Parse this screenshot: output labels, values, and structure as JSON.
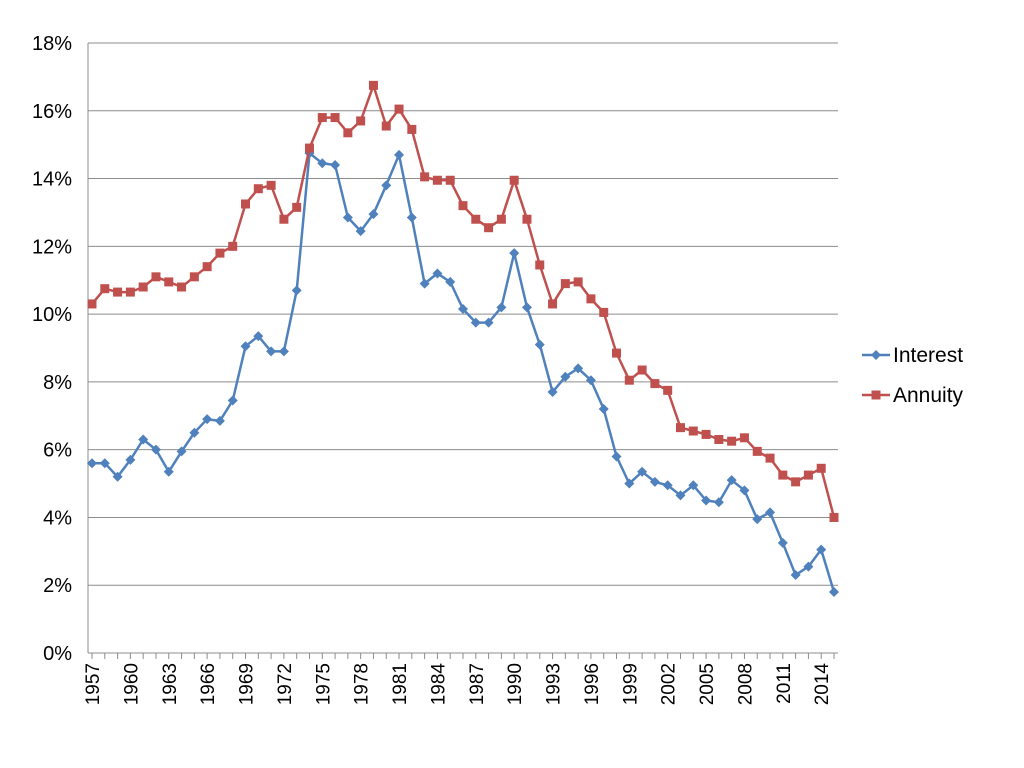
{
  "chart_data": {
    "type": "line",
    "title": "",
    "xlabel": "",
    "ylabel": "",
    "ylim": [
      0,
      18
    ],
    "y_unit": "%",
    "y_ticks": [
      "0%",
      "2%",
      "4%",
      "6%",
      "8%",
      "10%",
      "12%",
      "14%",
      "16%",
      "18%"
    ],
    "x_tick_labels": [
      "1957",
      "1960",
      "1963",
      "1966",
      "1969",
      "1972",
      "1975",
      "1978",
      "1981",
      "1984",
      "1987",
      "1990",
      "1993",
      "1996",
      "1999",
      "2002",
      "2005",
      "2008",
      "2011",
      "2014"
    ],
    "grid": true,
    "legend_position": "right",
    "x": [
      1957,
      1958,
      1959,
      1960,
      1961,
      1962,
      1963,
      1964,
      1965,
      1966,
      1967,
      1968,
      1969,
      1970,
      1971,
      1972,
      1973,
      1974,
      1975,
      1976,
      1977,
      1978,
      1979,
      1980,
      1981,
      1982,
      1983,
      1984,
      1985,
      1986,
      1987,
      1988,
      1989,
      1990,
      1991,
      1992,
      1993,
      1994,
      1995,
      1996,
      1997,
      1998,
      1999,
      2000,
      2001,
      2002,
      2003,
      2004,
      2005,
      2006,
      2007,
      2008,
      2009,
      2010,
      2011,
      2012,
      2013,
      2014,
      2015
    ],
    "series": [
      {
        "name": "Interest",
        "color": "#4F81BD",
        "marker": "diamond",
        "values": [
          5.6,
          5.6,
          5.2,
          5.7,
          6.3,
          6.0,
          5.35,
          5.95,
          6.5,
          6.9,
          6.85,
          7.45,
          9.05,
          9.35,
          8.9,
          8.9,
          10.7,
          14.75,
          14.45,
          14.4,
          12.85,
          12.45,
          12.95,
          13.8,
          14.7,
          12.85,
          10.9,
          11.2,
          10.95,
          10.15,
          9.75,
          9.75,
          10.2,
          11.8,
          10.2,
          9.1,
          7.7,
          8.15,
          8.4,
          8.05,
          7.2,
          5.8,
          5.0,
          5.35,
          5.05,
          4.95,
          4.65,
          4.95,
          4.5,
          4.45,
          5.1,
          4.8,
          3.95,
          4.15,
          3.25,
          2.3,
          2.55,
          3.05,
          1.8
        ]
      },
      {
        "name": "Annuity",
        "color": "#C0504D",
        "marker": "square",
        "values": [
          10.3,
          10.75,
          10.65,
          10.65,
          10.8,
          11.1,
          10.95,
          10.8,
          11.1,
          11.4,
          11.8,
          12.0,
          13.25,
          13.7,
          13.8,
          12.8,
          13.15,
          14.9,
          15.8,
          15.8,
          15.35,
          15.7,
          16.75,
          15.55,
          16.05,
          15.45,
          14.05,
          13.95,
          13.95,
          13.2,
          12.8,
          12.55,
          12.8,
          13.95,
          12.8,
          11.45,
          10.3,
          10.9,
          10.95,
          10.45,
          10.05,
          8.85,
          8.05,
          8.35,
          7.95,
          7.75,
          6.65,
          6.55,
          6.45,
          6.3,
          6.25,
          6.35,
          5.95,
          5.75,
          5.25,
          5.05,
          5.25,
          5.45,
          4.0
        ]
      }
    ]
  }
}
